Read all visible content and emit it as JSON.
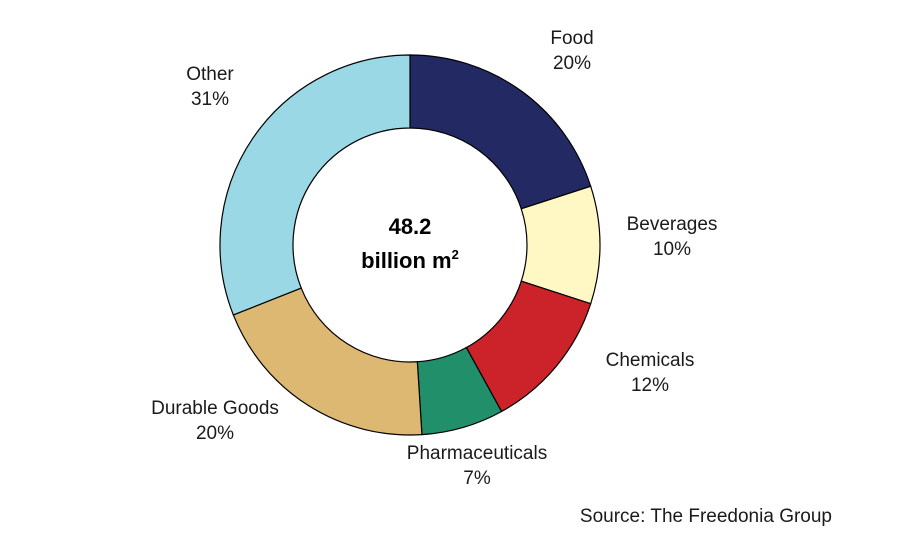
{
  "chart_data": {
    "type": "pie",
    "variant": "donut",
    "start_angle_deg": 0,
    "direction": "clockwise",
    "slices": [
      {
        "label": "Food",
        "value": 20,
        "value_label": "20%",
        "color": "#232a63"
      },
      {
        "label": "Beverages",
        "value": 10,
        "value_label": "10%",
        "color": "#fff8c4"
      },
      {
        "label": "Chemicals",
        "value": 12,
        "value_label": "12%",
        "color": "#cc2229"
      },
      {
        "label": "Pharmaceuticals",
        "value": 7,
        "value_label": "7%",
        "color": "#21906a"
      },
      {
        "label": "Durable Goods",
        "value": 20,
        "value_label": "20%",
        "color": "#dcb872"
      },
      {
        "label": "Other",
        "value": 31,
        "value_label": "31%",
        "color": "#9ad8e6"
      }
    ],
    "center": {
      "value": "48.2",
      "unit": "billion m",
      "unit_superscript": "2"
    },
    "source": "Source: The Freedonia Group"
  }
}
